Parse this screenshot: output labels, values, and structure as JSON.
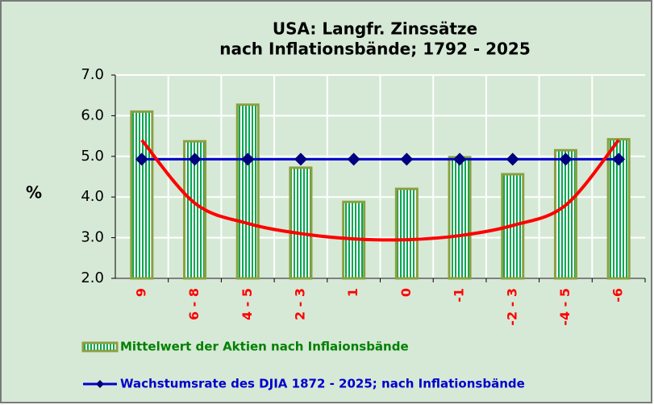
{
  "chart_data": {
    "type": "bar",
    "title": [
      "USA: Langfr. Zinssätze",
      "nach Inflationsbände; 1792 - 2025"
    ],
    "y_label": "%",
    "categories": [
      "9",
      "6 - 8",
      "4 - 5",
      "2 - 3",
      "1",
      "0",
      "-1",
      "-2 - 3",
      "-4 - 5",
      "-6"
    ],
    "series": [
      {
        "name": "Mittelwert der Aktien nach Inflaionsbände",
        "type": "bar",
        "color": "#00a651",
        "values": [
          6.1,
          5.37,
          6.27,
          4.72,
          3.88,
          4.2,
          4.98,
          4.56,
          5.15,
          5.42
        ]
      },
      {
        "name": "Wachstumsrate des DJIA 1872 - 2025; nach Inflationsbände",
        "type": "line",
        "color": "#0000cc",
        "values": [
          4.93,
          4.93,
          4.93,
          4.93,
          4.93,
          4.93,
          4.93,
          4.93,
          4.93,
          4.93
        ]
      },
      {
        "type": "curve",
        "color": "#ff0000",
        "values": [
          5.4,
          3.85,
          3.35,
          3.1,
          2.97,
          2.95,
          3.05,
          3.3,
          3.8,
          5.4
        ]
      }
    ],
    "ylim": [
      2,
      7
    ],
    "yticks": [
      {
        "value": 2,
        "label": "2.0"
      },
      {
        "value": 3,
        "label": "3.0"
      },
      {
        "value": 4,
        "label": "4.0"
      },
      {
        "value": 5,
        "label": "5.0"
      },
      {
        "value": 6,
        "label": "6.0"
      },
      {
        "value": 7,
        "label": "7.0"
      }
    ],
    "grid": true
  }
}
